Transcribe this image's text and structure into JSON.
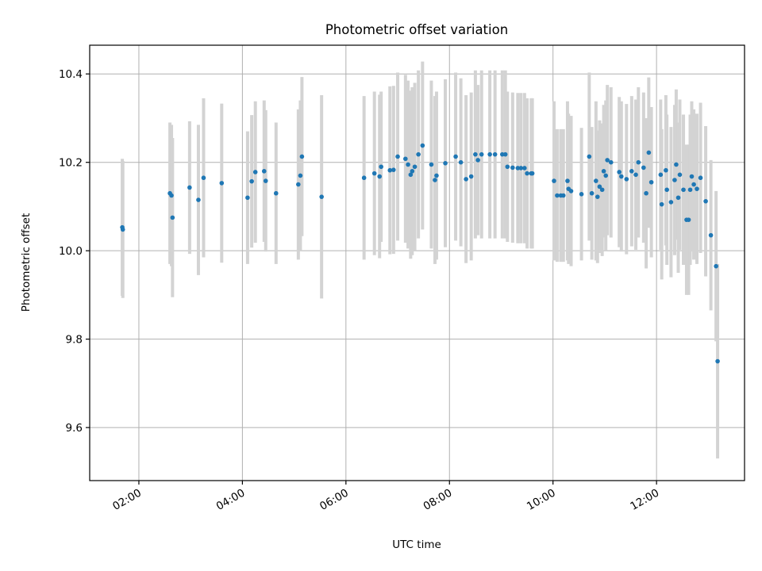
{
  "chart_data": {
    "type": "scatter",
    "title": "Photometric offset variation",
    "xlabel": "UTC time",
    "ylabel": "Photometric offset",
    "xlim_hours": [
      1.05,
      13.7
    ],
    "ylim": [
      9.48,
      10.465
    ],
    "x_ticks": [
      {
        "hour": 2,
        "label": "02:00"
      },
      {
        "hour": 4,
        "label": "04:00"
      },
      {
        "hour": 6,
        "label": "06:00"
      },
      {
        "hour": 8,
        "label": "08:00"
      },
      {
        "hour": 10,
        "label": "10:00"
      },
      {
        "hour": 12,
        "label": "12:00"
      }
    ],
    "y_ticks": [
      {
        "value": 9.6,
        "label": "9.6"
      },
      {
        "value": 9.8,
        "label": "9.8"
      },
      {
        "value": 10.0,
        "label": "10.0"
      },
      {
        "value": 10.2,
        "label": "10.2"
      },
      {
        "value": 10.4,
        "label": "10.4"
      }
    ],
    "grid": true,
    "point_color": "#1f77b4",
    "errorbar_color": "#d3d3d3",
    "points": [
      [
        1.68,
        10.053,
        0.155
      ],
      [
        1.69,
        10.048,
        0.155
      ],
      [
        2.6,
        10.13,
        0.16
      ],
      [
        2.63,
        10.125,
        0.16
      ],
      [
        2.65,
        10.075,
        0.18
      ],
      [
        2.98,
        10.143,
        0.15
      ],
      [
        3.15,
        10.115,
        0.17
      ],
      [
        3.25,
        10.165,
        0.18
      ],
      [
        3.6,
        10.153,
        0.18
      ],
      [
        4.1,
        10.12,
        0.15
      ],
      [
        4.18,
        10.157,
        0.15
      ],
      [
        4.25,
        10.178,
        0.16
      ],
      [
        4.42,
        10.18,
        0.16
      ],
      [
        4.45,
        10.158,
        0.16
      ],
      [
        4.65,
        10.13,
        0.16
      ],
      [
        5.08,
        10.15,
        0.17
      ],
      [
        5.12,
        10.17,
        0.17
      ],
      [
        5.15,
        10.213,
        0.18
      ],
      [
        5.53,
        10.122,
        0.23
      ],
      [
        6.35,
        10.165,
        0.185
      ],
      [
        6.55,
        10.175,
        0.185
      ],
      [
        6.65,
        10.168,
        0.185
      ],
      [
        6.68,
        10.19,
        0.17
      ],
      [
        6.85,
        10.182,
        0.19
      ],
      [
        6.92,
        10.183,
        0.19
      ],
      [
        7.0,
        10.213,
        0.19
      ],
      [
        7.15,
        10.208,
        0.19
      ],
      [
        7.2,
        10.195,
        0.19
      ],
      [
        7.25,
        10.172,
        0.19
      ],
      [
        7.28,
        10.18,
        0.19
      ],
      [
        7.33,
        10.19,
        0.19
      ],
      [
        7.4,
        10.218,
        0.19
      ],
      [
        7.48,
        10.238,
        0.19
      ],
      [
        7.65,
        10.195,
        0.19
      ],
      [
        7.72,
        10.16,
        0.19
      ],
      [
        7.75,
        10.17,
        0.19
      ],
      [
        7.92,
        10.198,
        0.19
      ],
      [
        8.12,
        10.213,
        0.19
      ],
      [
        8.22,
        10.2,
        0.19
      ],
      [
        8.32,
        10.162,
        0.19
      ],
      [
        8.42,
        10.168,
        0.19
      ],
      [
        8.5,
        10.218,
        0.19
      ],
      [
        8.55,
        10.205,
        0.17
      ],
      [
        8.62,
        10.218,
        0.19
      ],
      [
        8.78,
        10.218,
        0.19
      ],
      [
        8.88,
        10.218,
        0.19
      ],
      [
        9.02,
        10.218,
        0.19
      ],
      [
        9.08,
        10.218,
        0.19
      ],
      [
        9.12,
        10.19,
        0.17
      ],
      [
        9.22,
        10.188,
        0.17
      ],
      [
        9.32,
        10.187,
        0.17
      ],
      [
        9.38,
        10.187,
        0.17
      ],
      [
        9.45,
        10.187,
        0.17
      ],
      [
        9.5,
        10.175,
        0.17
      ],
      [
        9.58,
        10.175,
        0.17
      ],
      [
        9.6,
        10.175,
        0.17
      ],
      [
        10.02,
        10.158,
        0.18
      ],
      [
        10.08,
        10.125,
        0.15
      ],
      [
        10.15,
        10.125,
        0.15
      ],
      [
        10.2,
        10.125,
        0.15
      ],
      [
        10.28,
        10.158,
        0.18
      ],
      [
        10.3,
        10.14,
        0.17
      ],
      [
        10.35,
        10.135,
        0.17
      ],
      [
        10.55,
        10.128,
        0.15
      ],
      [
        10.7,
        10.213,
        0.19
      ],
      [
        10.75,
        10.13,
        0.15
      ],
      [
        10.83,
        10.158,
        0.18
      ],
      [
        10.86,
        10.122,
        0.15
      ],
      [
        10.9,
        10.145,
        0.15
      ],
      [
        10.95,
        10.138,
        0.15
      ],
      [
        10.98,
        10.18,
        0.15
      ],
      [
        11.02,
        10.17,
        0.17
      ],
      [
        11.05,
        10.205,
        0.17
      ],
      [
        11.12,
        10.2,
        0.17
      ],
      [
        11.28,
        10.178,
        0.17
      ],
      [
        11.32,
        10.168,
        0.17
      ],
      [
        11.42,
        10.162,
        0.17
      ],
      [
        11.52,
        10.18,
        0.17
      ],
      [
        11.6,
        10.172,
        0.17
      ],
      [
        11.65,
        10.2,
        0.17
      ],
      [
        11.75,
        10.188,
        0.17
      ],
      [
        11.8,
        10.13,
        0.17
      ],
      [
        11.85,
        10.222,
        0.17
      ],
      [
        11.9,
        10.155,
        0.17
      ],
      [
        12.08,
        10.172,
        0.17
      ],
      [
        12.1,
        10.105,
        0.17
      ],
      [
        12.18,
        10.182,
        0.17
      ],
      [
        12.2,
        10.138,
        0.17
      ],
      [
        12.28,
        10.11,
        0.17
      ],
      [
        12.35,
        10.16,
        0.17
      ],
      [
        12.38,
        10.195,
        0.17
      ],
      [
        12.42,
        10.12,
        0.17
      ],
      [
        12.45,
        10.172,
        0.17
      ],
      [
        12.52,
        10.138,
        0.17
      ],
      [
        12.58,
        10.07,
        0.17
      ],
      [
        12.62,
        10.07,
        0.17
      ],
      [
        12.65,
        10.138,
        0.17
      ],
      [
        12.68,
        10.168,
        0.17
      ],
      [
        12.72,
        10.15,
        0.17
      ],
      [
        12.78,
        10.14,
        0.17
      ],
      [
        12.85,
        10.165,
        0.17
      ],
      [
        12.95,
        10.112,
        0.17
      ],
      [
        13.05,
        10.035,
        0.17
      ],
      [
        13.15,
        9.965,
        0.17
      ],
      [
        13.18,
        9.75,
        0.22
      ]
    ]
  }
}
